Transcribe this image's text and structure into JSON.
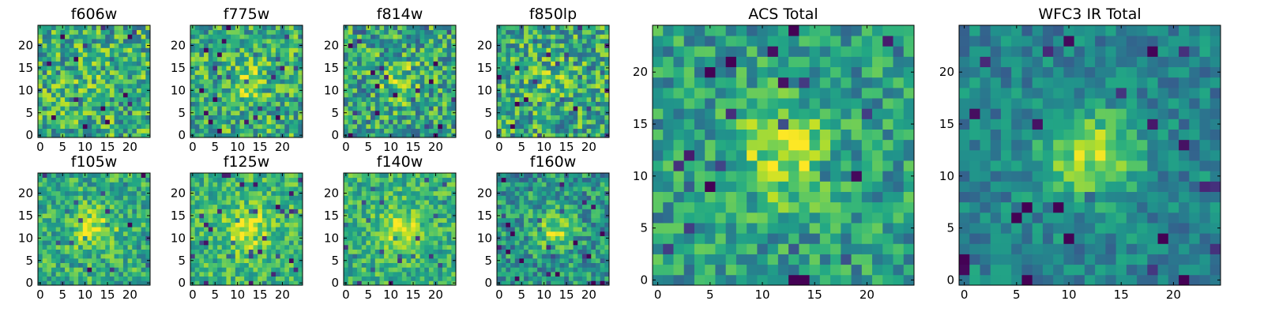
{
  "figure": {
    "background": "#ffffff"
  },
  "colormap": {
    "name": "viridis",
    "stops": [
      "#440154",
      "#482475",
      "#414487",
      "#355f8d",
      "#2a788e",
      "#21918c",
      "#22a884",
      "#44bf70",
      "#7ad151",
      "#bddf26",
      "#fde725"
    ]
  },
  "chart_data": [
    {
      "type": "heatmap",
      "title": "f606w",
      "grid_size": 25,
      "xticks": [
        0,
        5,
        10,
        15,
        20
      ],
      "yticks": [
        0,
        5,
        10,
        15,
        20
      ],
      "xlim": [
        0,
        24
      ],
      "ylim": [
        0,
        24
      ],
      "signal_strength": 0.05,
      "noise_level": 0.3,
      "mean_level": 0.62,
      "seed": 11
    },
    {
      "type": "heatmap",
      "title": "f775w",
      "grid_size": 25,
      "xticks": [
        0,
        5,
        10,
        15,
        20
      ],
      "yticks": [
        0,
        5,
        10,
        15,
        20
      ],
      "xlim": [
        0,
        24
      ],
      "ylim": [
        0,
        24
      ],
      "signal_strength": 0.18,
      "noise_level": 0.28,
      "mean_level": 0.62,
      "seed": 23
    },
    {
      "type": "heatmap",
      "title": "f814w",
      "grid_size": 25,
      "xticks": [
        0,
        5,
        10,
        15,
        20
      ],
      "yticks": [
        0,
        5,
        10,
        15,
        20
      ],
      "xlim": [
        0,
        24
      ],
      "ylim": [
        0,
        24
      ],
      "signal_strength": 0.2,
      "noise_level": 0.3,
      "mean_level": 0.58,
      "seed": 37
    },
    {
      "type": "heatmap",
      "title": "f850lp",
      "grid_size": 25,
      "xticks": [
        0,
        5,
        10,
        15,
        20
      ],
      "yticks": [
        0,
        5,
        10,
        15,
        20
      ],
      "xlim": [
        0,
        24
      ],
      "ylim": [
        0,
        24
      ],
      "signal_strength": 0.1,
      "noise_level": 0.3,
      "mean_level": 0.6,
      "seed": 41
    },
    {
      "type": "heatmap",
      "title": "f105w",
      "grid_size": 25,
      "xticks": [
        0,
        5,
        10,
        15,
        20
      ],
      "yticks": [
        0,
        5,
        10,
        15,
        20
      ],
      "xlim": [
        0,
        24
      ],
      "ylim": [
        0,
        24
      ],
      "signal_strength": 0.3,
      "noise_level": 0.22,
      "mean_level": 0.62,
      "seed": 53
    },
    {
      "type": "heatmap",
      "title": "f125w",
      "grid_size": 25,
      "xticks": [
        0,
        5,
        10,
        15,
        20
      ],
      "yticks": [
        0,
        5,
        10,
        15,
        20
      ],
      "xlim": [
        0,
        24
      ],
      "ylim": [
        0,
        24
      ],
      "signal_strength": 0.32,
      "noise_level": 0.2,
      "mean_level": 0.66,
      "seed": 67
    },
    {
      "type": "heatmap",
      "title": "f140w",
      "grid_size": 25,
      "xticks": [
        0,
        5,
        10,
        15,
        20
      ],
      "yticks": [
        0,
        5,
        10,
        15,
        20
      ],
      "xlim": [
        0,
        24
      ],
      "ylim": [
        0,
        24
      ],
      "signal_strength": 0.3,
      "noise_level": 0.2,
      "mean_level": 0.64,
      "seed": 79
    },
    {
      "type": "heatmap",
      "title": "f160w",
      "grid_size": 25,
      "xticks": [
        0,
        5,
        10,
        15,
        20
      ],
      "yticks": [
        0,
        5,
        10,
        15,
        20
      ],
      "xlim": [
        0,
        24
      ],
      "ylim": [
        0,
        24
      ],
      "signal_strength": 0.3,
      "noise_level": 0.24,
      "mean_level": 0.52,
      "seed": 83
    },
    {
      "type": "heatmap",
      "title": "ACS Total",
      "grid_size": 25,
      "xticks": [
        0,
        5,
        10,
        15,
        20
      ],
      "yticks": [
        0,
        5,
        10,
        15,
        20
      ],
      "xlim": [
        0,
        24
      ],
      "ylim": [
        0,
        24
      ],
      "signal_strength": 0.35,
      "noise_level": 0.22,
      "mean_level": 0.55,
      "seed": 97
    },
    {
      "type": "heatmap",
      "title": "WFC3 IR Total",
      "grid_size": 25,
      "xticks": [
        0,
        5,
        10,
        15,
        20
      ],
      "yticks": [
        0,
        5,
        10,
        15,
        20
      ],
      "xlim": [
        0,
        24
      ],
      "ylim": [
        0,
        24
      ],
      "signal_strength": 0.42,
      "noise_level": 0.16,
      "mean_level": 0.45,
      "seed": 101
    }
  ]
}
